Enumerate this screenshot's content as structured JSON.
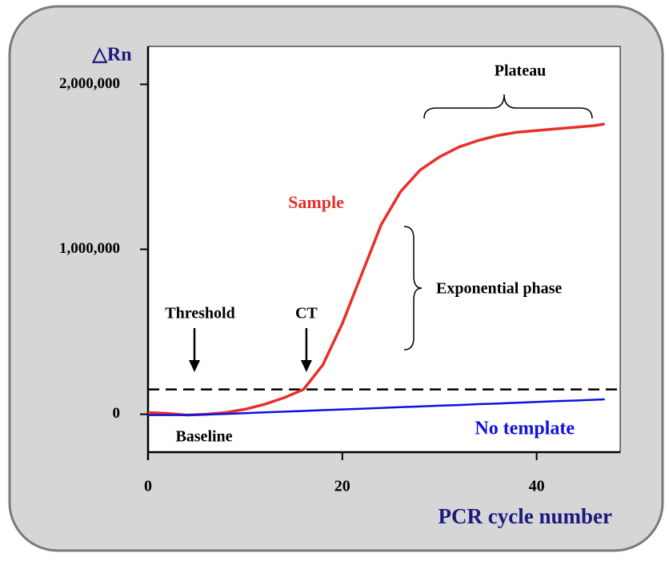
{
  "chart_data": {
    "type": "line",
    "y_label": "△Rn",
    "x_label": "PCR cycle number",
    "x": [
      0,
      2,
      4,
      6,
      8,
      10,
      12,
      14,
      16,
      18,
      20,
      22,
      24,
      26,
      28,
      30,
      32,
      34,
      36,
      38,
      40,
      42,
      44,
      46,
      47
    ],
    "series": [
      {
        "name": "Sample",
        "color": "#e8302a",
        "values": [
          10000,
          5000,
          -5000,
          0,
          10000,
          30000,
          60000,
          100000,
          150000,
          300000,
          550000,
          850000,
          1150000,
          1350000,
          1480000,
          1560000,
          1620000,
          1660000,
          1690000,
          1710000,
          1720000,
          1730000,
          1740000,
          1750000,
          1760000
        ]
      },
      {
        "name": "No template",
        "color": "#1010e0",
        "values": [
          -5000,
          -5000,
          -5000,
          -2000,
          2000,
          6500,
          11000,
          15500,
          20000,
          24600,
          29000,
          33600,
          38000,
          43000,
          47000,
          52000,
          56000,
          61000,
          65000,
          70000,
          74000,
          79000,
          83000,
          88000,
          90000
        ]
      }
    ],
    "threshold": {
      "label": "Threshold",
      "value": 150000
    },
    "ct": {
      "label": "CT",
      "value": 16.3
    },
    "annotations": [
      "Baseline",
      "Plateau",
      "Exponential phase"
    ],
    "xlim": [
      0,
      48.6
    ],
    "ylim": [
      -230000,
      2230000
    ],
    "xticks": [
      0,
      20,
      40
    ],
    "yticks": [
      0,
      {
        "value": 1000000,
        "label": "1,000,000"
      },
      {
        "value": 2000000,
        "label": "2,000,000"
      }
    ]
  }
}
